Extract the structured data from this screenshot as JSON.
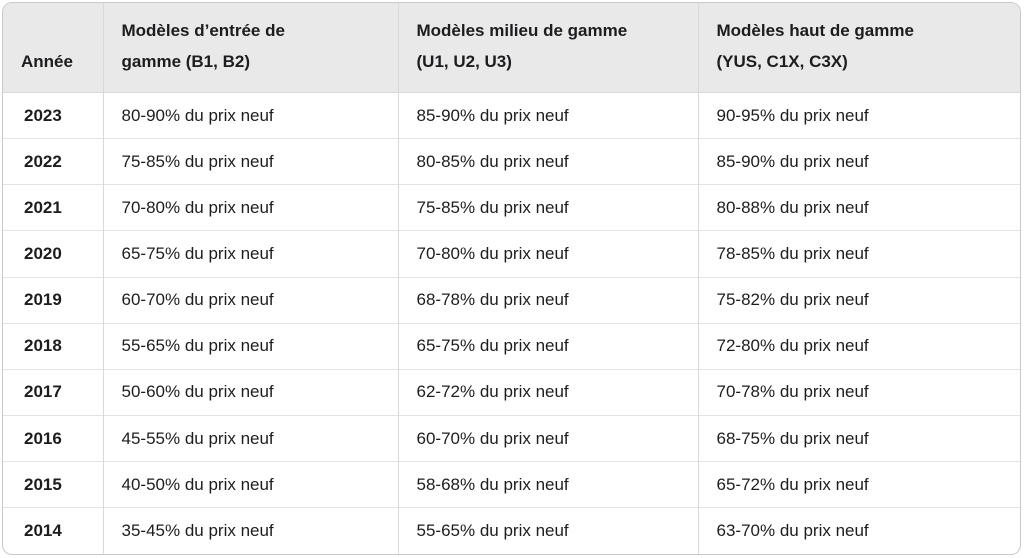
{
  "colors": {
    "header_bg": "#e9e9ea",
    "outer_border": "#c9c9cb",
    "row_border": "#e3e3e5",
    "col_border": "#d9d9db",
    "text": "#1d1d1f",
    "page_bg": "#ffffff"
  },
  "header": {
    "cells": [
      {
        "lines": [
          "Année"
        ]
      },
      {
        "lines": [
          "Modèles d’entrée de",
          "gamme (B1, B2)"
        ]
      },
      {
        "lines": [
          "Modèles milieu de gamme",
          "(U1, U2, U3)"
        ]
      },
      {
        "lines": [
          "Modèles haut de gamme",
          "(YUS, C1X, C3X)"
        ]
      }
    ]
  },
  "chart_data": {
    "type": "table",
    "columns": [
      "Année",
      "Modèles d’entrée de gamme (B1, B2)",
      "Modèles milieu de gamme (U1, U2, U3)",
      "Modèles haut de gamme (YUS, C1X, C3X)"
    ],
    "rows": [
      [
        "2023",
        "80-90% du prix neuf",
        "85-90% du prix neuf",
        "90-95% du prix neuf"
      ],
      [
        "2022",
        "75-85% du prix neuf",
        "80-85% du prix neuf",
        "85-90% du prix neuf"
      ],
      [
        "2021",
        "70-80% du prix neuf",
        "75-85% du prix neuf",
        "80-88% du prix neuf"
      ],
      [
        "2020",
        "65-75% du prix neuf",
        "70-80% du prix neuf",
        "78-85% du prix neuf"
      ],
      [
        "2019",
        "60-70% du prix neuf",
        "68-78% du prix neuf",
        "75-82% du prix neuf"
      ],
      [
        "2018",
        "55-65% du prix neuf",
        "65-75% du prix neuf",
        "72-80% du prix neuf"
      ],
      [
        "2017",
        "50-60% du prix neuf",
        "62-72% du prix neuf",
        "70-78% du prix neuf"
      ],
      [
        "2016",
        "45-55% du prix neuf",
        "60-70% du prix neuf",
        "68-75% du prix neuf"
      ],
      [
        "2015",
        "40-50% du prix neuf",
        "58-68% du prix neuf",
        "65-72% du prix neuf"
      ],
      [
        "2014",
        "35-45% du prix neuf",
        "55-65% du prix neuf",
        "63-70% du prix neuf"
      ]
    ]
  }
}
